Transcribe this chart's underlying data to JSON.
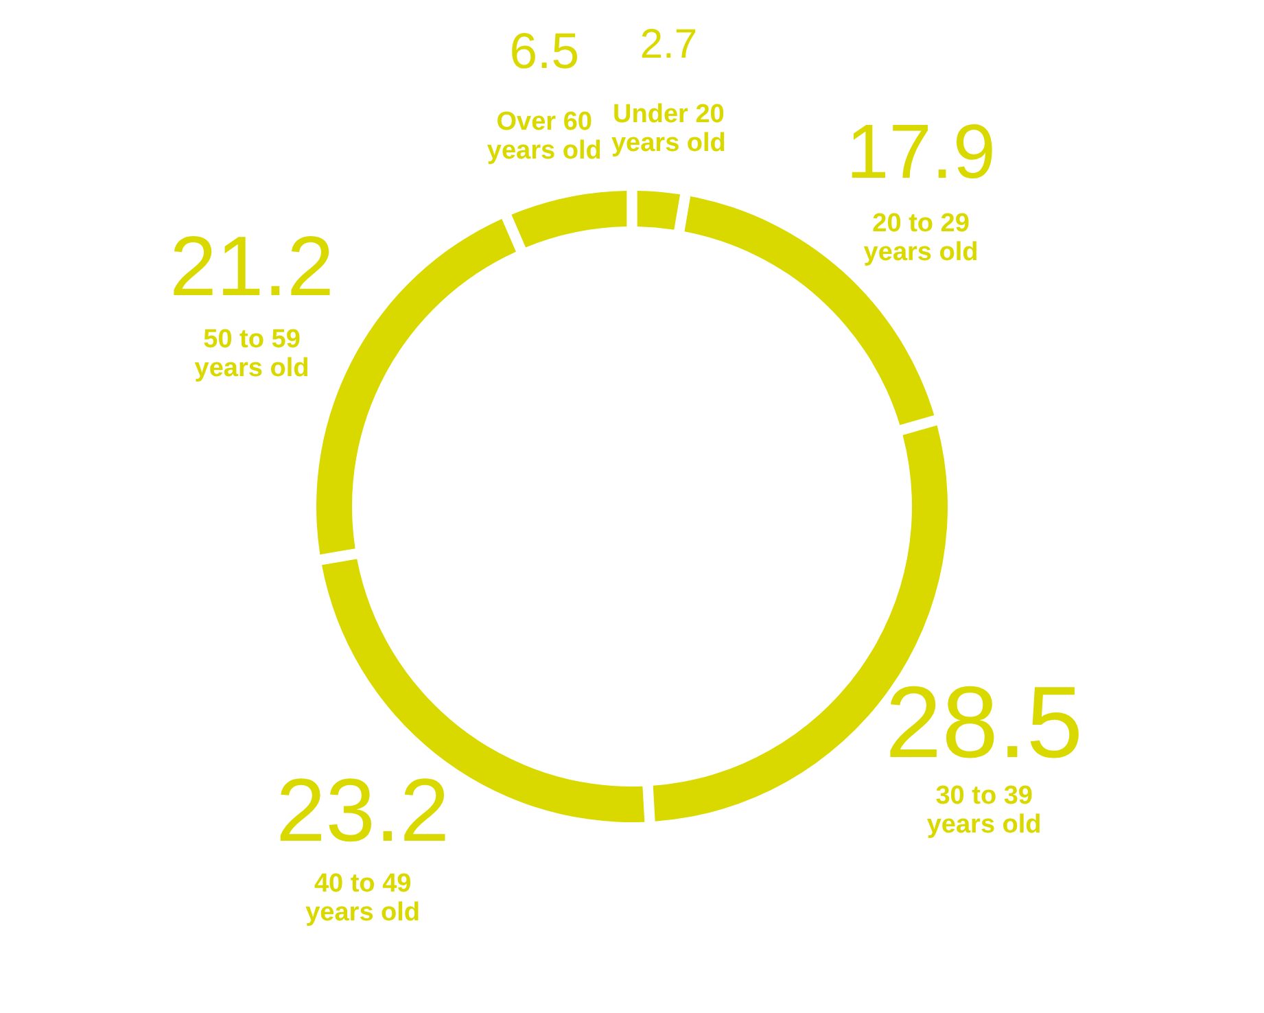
{
  "chart_data": {
    "type": "donut",
    "categories": [
      "Under 20\nyears old",
      "20 to 29\nyears old",
      "30 to 39\nyears old",
      "40 to 49\nyears old",
      "50 to 59\nyears old",
      "Over 60\nyears old"
    ],
    "values": [
      2.7,
      17.9,
      28.5,
      23.2,
      21.2,
      6.5
    ],
    "colors": [
      "#d9d900",
      "#d9d900",
      "#d9d900",
      "#d9d900",
      "#d9d900",
      "#d9d900"
    ],
    "data_labels": true
  }
}
